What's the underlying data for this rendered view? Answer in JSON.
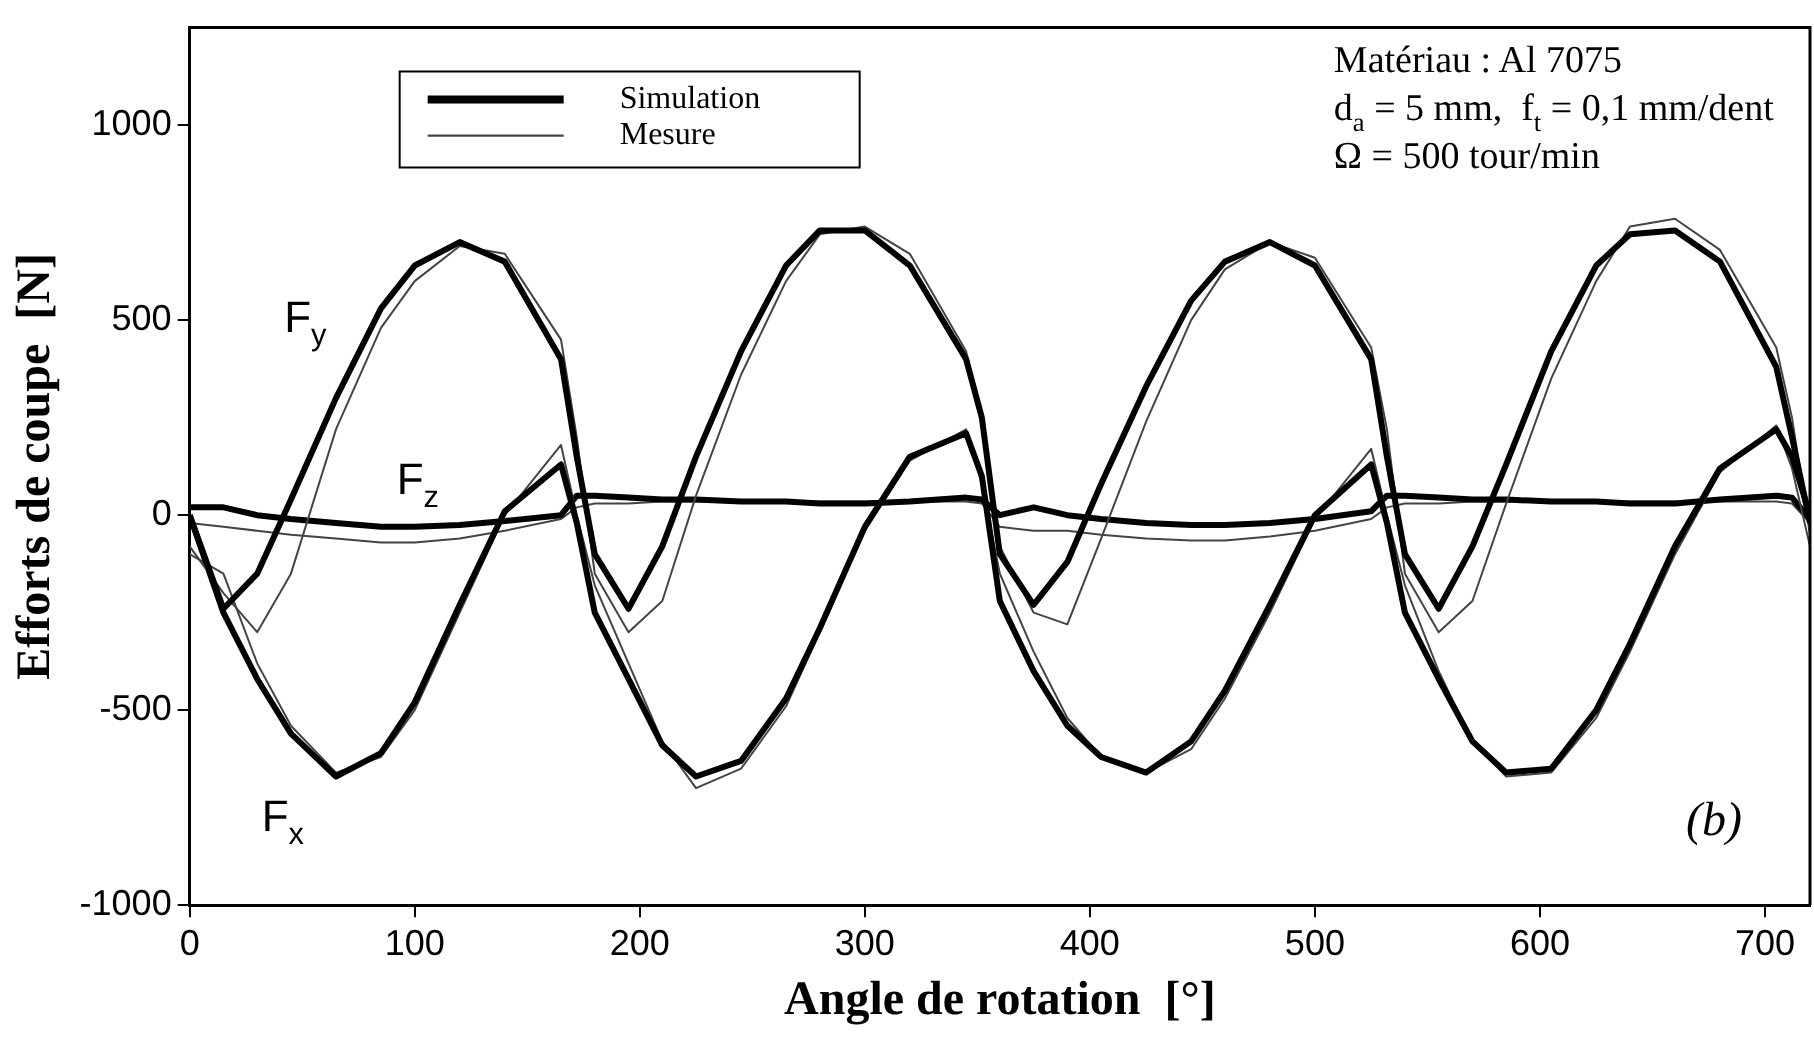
{
  "chart_data": {
    "type": "line",
    "xlabel": "Angle de rotation  [°]",
    "ylabel": "Efforts de coupe  [N]",
    "x": [
      0,
      15,
      30,
      45,
      65,
      85,
      100,
      120,
      140,
      165,
      172,
      180,
      195,
      210,
      225,
      245,
      265,
      280,
      300,
      320,
      345,
      352,
      360,
      375,
      390,
      405,
      425,
      445,
      460,
      480,
      500,
      525,
      532,
      540,
      555,
      570,
      585,
      605,
      625,
      640,
      660,
      680,
      705,
      712,
      720
    ],
    "series": [
      {
        "name": "Simulation",
        "color": "#000000",
        "values": [
          0,
          -240,
          -150,
          40,
          300,
          530,
          640,
          700,
          650,
          400,
          150,
          -100,
          -240,
          -80,
          150,
          420,
          640,
          730,
          730,
          640,
          400,
          250,
          -100,
          -230,
          -120,
          80,
          330,
          550,
          650,
          700,
          640,
          400,
          150,
          -100,
          -240,
          -80,
          130,
          420,
          640,
          720,
          730,
          650,
          380,
          200,
          -20
        ]
      },
      {
        "name": "Mesure",
        "color": "#444444",
        "values": [
          -80,
          -200,
          -300,
          -150,
          220,
          480,
          600,
          690,
          670,
          450,
          200,
          -150,
          -300,
          -220,
          50,
          360,
          600,
          720,
          740,
          670,
          420,
          250,
          -80,
          -250,
          -280,
          -60,
          240,
          500,
          630,
          700,
          660,
          430,
          220,
          -150,
          -300,
          -220,
          30,
          350,
          600,
          740,
          760,
          680,
          430,
          250,
          -50
        ]
      },
      {
        "color": "#000000",
        "values": [
          0,
          -250,
          -420,
          -560,
          -670,
          -610,
          -480,
          -230,
          10,
          130,
          -20,
          -250,
          -420,
          -590,
          -670,
          -630,
          -470,
          -290,
          -30,
          150,
          210,
          100,
          -220,
          -400,
          -540,
          -620,
          -660,
          -580,
          -450,
          -230,
          0,
          130,
          -20,
          -250,
          -420,
          -580,
          -660,
          -650,
          -500,
          -330,
          -80,
          120,
          220,
          150,
          0
        ]
      },
      {
        "color": "#444444",
        "values": [
          -100,
          -150,
          -380,
          -540,
          -660,
          -620,
          -500,
          -250,
          0,
          180,
          0,
          -180,
          -380,
          -580,
          -700,
          -650,
          -490,
          -300,
          -40,
          140,
          220,
          80,
          -150,
          -350,
          -520,
          -620,
          -660,
          -600,
          -470,
          -250,
          -10,
          170,
          0,
          -180,
          -400,
          -580,
          -670,
          -660,
          -520,
          -350,
          -100,
          110,
          230,
          120,
          -80
        ]
      },
      {
        "color": "#000000",
        "values": [
          20,
          20,
          0,
          -10,
          -20,
          -30,
          -30,
          -25,
          -15,
          0,
          50,
          50,
          45,
          40,
          40,
          35,
          35,
          30,
          30,
          35,
          45,
          40,
          0,
          20,
          0,
          -10,
          -20,
          -25,
          -25,
          -20,
          -10,
          10,
          50,
          50,
          45,
          40,
          40,
          35,
          35,
          30,
          30,
          40,
          50,
          45,
          -10
        ]
      },
      {
        "color": "#444444",
        "values": [
          -20,
          -30,
          -40,
          -50,
          -60,
          -70,
          -70,
          -60,
          -40,
          -10,
          20,
          30,
          30,
          35,
          35,
          35,
          35,
          35,
          35,
          35,
          35,
          30,
          -30,
          -40,
          -40,
          -50,
          -60,
          -65,
          -65,
          -55,
          -40,
          -10,
          20,
          30,
          30,
          35,
          35,
          35,
          35,
          35,
          35,
          35,
          35,
          30,
          -20
        ]
      }
    ],
    "xlim": [
      0,
      720
    ],
    "xticks": [
      0,
      100,
      200,
      300,
      400,
      500,
      600,
      700
    ],
    "ylim": [
      -1000,
      1250
    ],
    "yticks": [
      -1000,
      -500,
      0,
      500,
      1000
    ],
    "grid": false,
    "legend": "top left",
    "marker": "none",
    "line_style": "solid",
    "annotations": [
      "F$_{y}$",
      "F$_{x}$",
      "F$_{z}$",
      "Matériau : Al 7075",
      "d$_{a}$ = 5 mm,  f$_{t}$ = 0,1 mm/dent",
      "Ω = 500 tour/min",
      "(b)"
    ]
  }
}
